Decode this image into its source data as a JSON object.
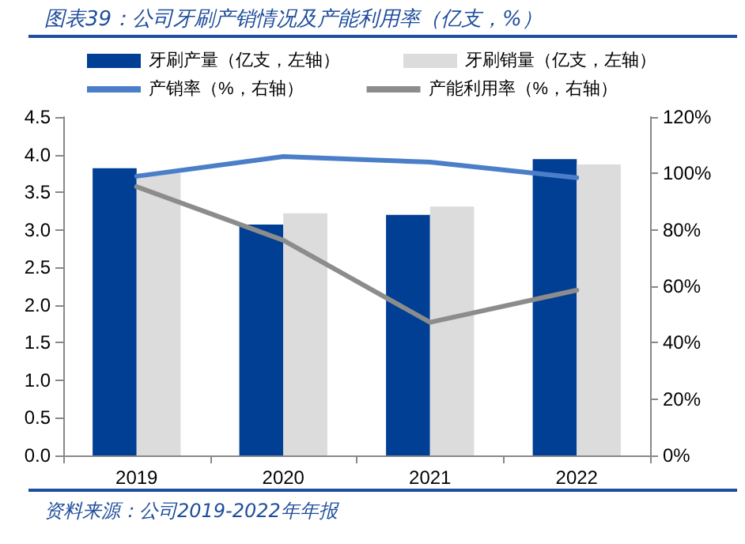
{
  "chart_data": {
    "type": "bar",
    "title": "图表39：公司牙刷产销情况及产能利用率（亿支，%）",
    "categories": [
      "2019",
      "2020",
      "2021",
      "2022"
    ],
    "series": [
      {
        "name": "牙刷产量（亿支，左轴）",
        "color": "#003f94",
        "values": [
          3.82,
          3.07,
          3.2,
          3.94
        ]
      },
      {
        "name": "牙刷销量（亿支，左轴）",
        "color": "#dcdcdc",
        "values": [
          3.75,
          3.22,
          3.31,
          3.87
        ]
      },
      {
        "name": "产销率（%，右轴）",
        "type": "line",
        "axis": "y2",
        "color": "#4a7ec8",
        "values": [
          99,
          106,
          104,
          98.5
        ]
      },
      {
        "name": "产能利用率（%，右轴）",
        "type": "line",
        "axis": "y2",
        "color": "#8c8c8c",
        "values": [
          95.3,
          76.3,
          47.2,
          58.6
        ]
      }
    ],
    "ylim": [
      0,
      4.5
    ],
    "yticks": [
      {
        "value": 0,
        "label": "0.0"
      },
      0.5,
      {
        "value": 1,
        "label": "1.0"
      },
      1.5,
      {
        "value": 2,
        "label": "2.0"
      },
      2.5,
      {
        "value": 3,
        "label": "3.0"
      },
      3.5,
      {
        "value": 4,
        "label": "4.0"
      },
      4.5
    ],
    "y2lim": [
      0,
      120
    ],
    "y2ticks": [
      {
        "value": 0,
        "label": "0%"
      },
      {
        "value": 20,
        "label": "20%"
      },
      {
        "value": 40,
        "label": "40%"
      },
      {
        "value": 60,
        "label": "60%"
      },
      {
        "value": 80,
        "label": "80%"
      },
      {
        "value": 100,
        "label": "100%"
      },
      {
        "value": 120,
        "label": "120%"
      }
    ],
    "legend": "top",
    "grid": false,
    "marker": "none",
    "line_style": "solid",
    "annotations": [
      "资料来源：公司2019-2022年年报"
    ]
  }
}
